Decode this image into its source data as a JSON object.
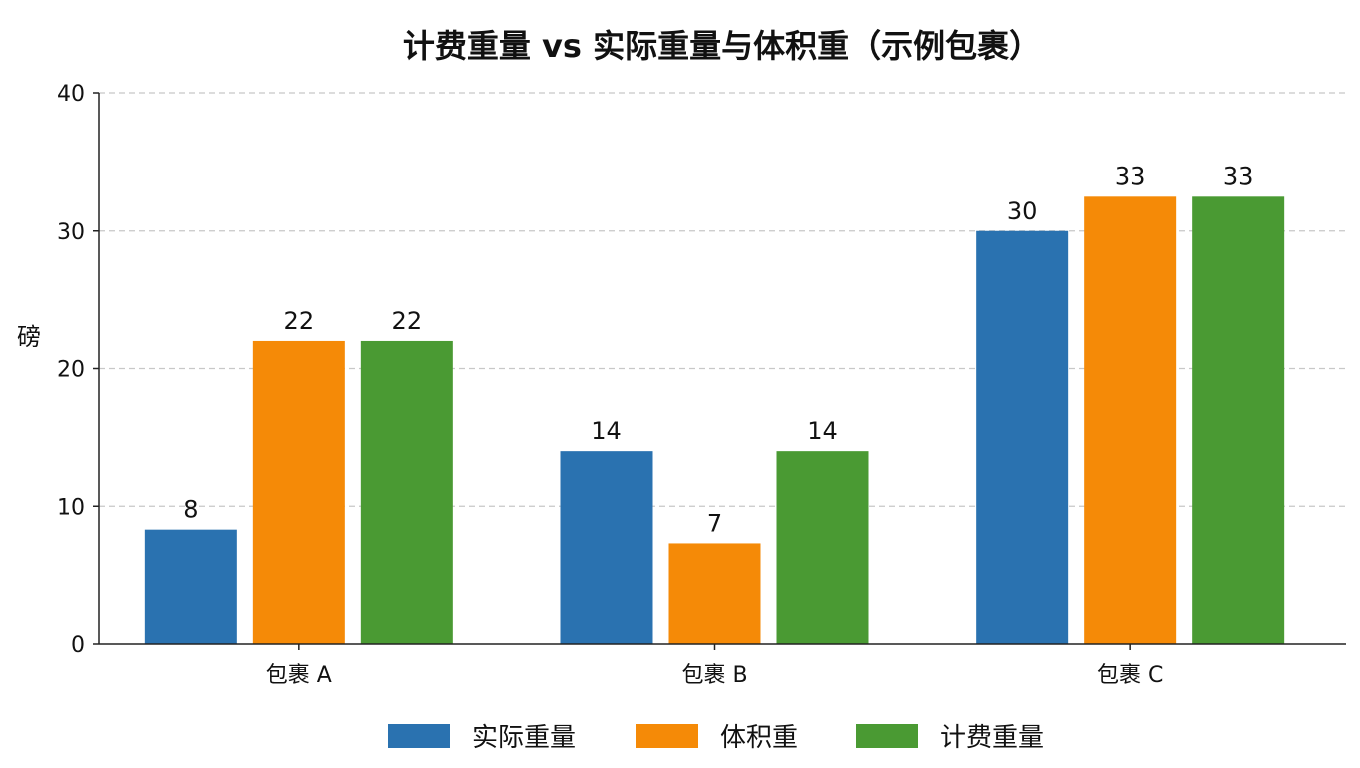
{
  "chart_data": {
    "type": "bar",
    "title": "计费重量 vs 实际重量与体积重（示例包裹）",
    "ylabel": "磅",
    "xlabel": "",
    "ylim": [
      0,
      40
    ],
    "yticks": [
      0,
      10,
      20,
      30,
      40
    ],
    "grid": true,
    "legend_position": "bottom",
    "categories": [
      "包裹 A",
      "包裹 B",
      "包裹 C"
    ],
    "series": [
      {
        "name": "实际重量",
        "color": "#2a72b0",
        "values": [
          8.3,
          14,
          30
        ],
        "labels": [
          "8",
          "14",
          "30"
        ]
      },
      {
        "name": "体积重",
        "color": "#f58a07",
        "values": [
          22,
          7.3,
          32.5
        ],
        "labels": [
          "22",
          "7",
          "33"
        ]
      },
      {
        "name": "计费重量",
        "color": "#4a9a33",
        "values": [
          22,
          14,
          32.5
        ],
        "labels": [
          "22",
          "14",
          "33"
        ]
      }
    ]
  }
}
